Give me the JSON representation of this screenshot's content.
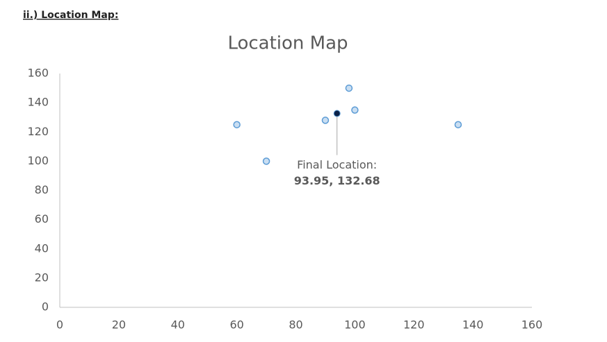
{
  "header": "ii.) Location Map:",
  "chart_data": {
    "type": "scatter",
    "title": "Location Map",
    "x": [
      60,
      70,
      90,
      98,
      100,
      135
    ],
    "values": [
      125,
      100,
      128,
      150,
      135,
      125
    ],
    "color": "#5b9bd5",
    "fill": "#c9def2",
    "annotation": {
      "text": "Final Location:",
      "x": 93.95,
      "y": 132.68,
      "label": "93.95, 132.68",
      "color": "#0b2147"
    },
    "xlim": [
      0,
      160
    ],
    "xticks": [
      0,
      20,
      40,
      60,
      80,
      100,
      120,
      140,
      160
    ],
    "ylim": [
      0,
      160
    ],
    "yticks": [
      0,
      20,
      40,
      60,
      80,
      100,
      120,
      140,
      160
    ],
    "grid": false
  }
}
